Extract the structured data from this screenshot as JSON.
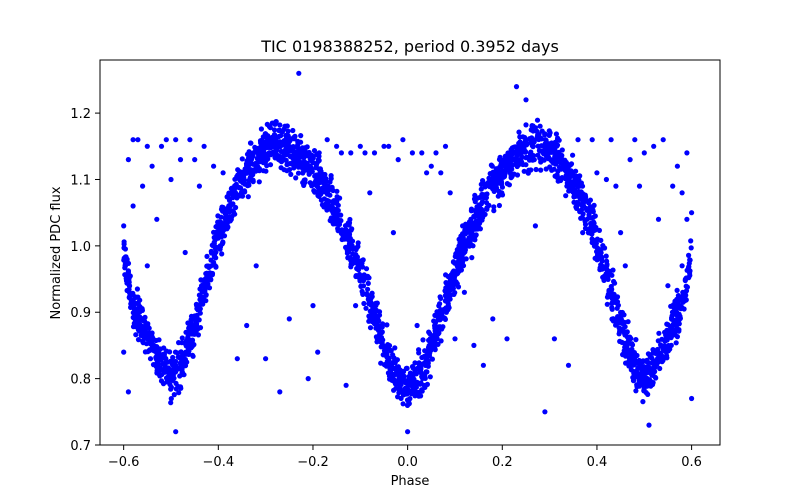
{
  "chart_data": {
    "type": "scatter",
    "title": "TIC 0198388252, period 0.3952 days",
    "xlabel": "Phase",
    "ylabel": "Normalized PDC flux",
    "xlim": [
      -0.65,
      0.66
    ],
    "ylim": [
      0.7,
      1.28
    ],
    "xticks": [
      -0.6,
      -0.4,
      -0.2,
      0.0,
      0.2,
      0.4,
      0.6
    ],
    "xtick_labels": [
      "−0.6",
      "−0.4",
      "−0.2",
      "0.0",
      "0.2",
      "0.4",
      "0.6"
    ],
    "yticks": [
      0.7,
      0.8,
      0.9,
      1.0,
      1.1,
      1.2
    ],
    "ytick_labels": [
      "0.7",
      "0.8",
      "0.9",
      "1.0",
      "1.1",
      "1.2"
    ],
    "grid": false,
    "color": "#0000ff",
    "series": [
      {
        "envelope": {
          "phase": [
            -0.6,
            -0.58,
            -0.55,
            -0.52,
            -0.5,
            -0.48,
            -0.45,
            -0.42,
            -0.4,
            -0.37,
            -0.34,
            -0.31,
            -0.28,
            -0.26,
            -0.24,
            -0.21,
            -0.18,
            -0.15,
            -0.12,
            -0.09,
            -0.06,
            -0.03,
            0.0,
            0.03,
            0.06,
            0.09,
            0.12,
            0.15,
            0.18,
            0.21,
            0.24,
            0.26,
            0.28,
            0.31,
            0.34,
            0.37,
            0.4,
            0.42,
            0.45,
            0.48,
            0.5,
            0.52,
            0.55,
            0.58,
            0.6
          ],
          "flux_center": [
            0.99,
            0.91,
            0.86,
            0.82,
            0.8,
            0.82,
            0.88,
            0.96,
            1.01,
            1.07,
            1.11,
            1.14,
            1.15,
            1.15,
            1.14,
            1.12,
            1.09,
            1.05,
            1.0,
            0.94,
            0.87,
            0.81,
            0.78,
            0.81,
            0.87,
            0.94,
            1.0,
            1.05,
            1.09,
            1.12,
            1.14,
            1.15,
            1.15,
            1.14,
            1.11,
            1.07,
            1.01,
            0.96,
            0.88,
            0.82,
            0.8,
            0.82,
            0.86,
            0.91,
            0.99
          ],
          "band_halfwidth": [
            0.04,
            0.05,
            0.05,
            0.05,
            0.05,
            0.05,
            0.05,
            0.05,
            0.05,
            0.05,
            0.05,
            0.05,
            0.05,
            0.05,
            0.05,
            0.05,
            0.05,
            0.05,
            0.05,
            0.05,
            0.05,
            0.05,
            0.04,
            0.05,
            0.05,
            0.05,
            0.05,
            0.05,
            0.05,
            0.05,
            0.05,
            0.05,
            0.05,
            0.05,
            0.05,
            0.05,
            0.05,
            0.05,
            0.05,
            0.05,
            0.05,
            0.05,
            0.05,
            0.05,
            0.04
          ]
        },
        "points": [
          [
            -0.6,
            1.03
          ],
          [
            -0.6,
            0.84
          ],
          [
            -0.59,
            1.13
          ],
          [
            -0.59,
            0.78
          ],
          [
            -0.58,
            1.16
          ],
          [
            -0.58,
            1.06
          ],
          [
            -0.57,
            1.16
          ],
          [
            -0.56,
            1.09
          ],
          [
            -0.56,
            0.89
          ],
          [
            -0.55,
            1.15
          ],
          [
            -0.55,
            0.97
          ],
          [
            -0.54,
            1.12
          ],
          [
            -0.53,
            1.04
          ],
          [
            -0.52,
            1.15
          ],
          [
            -0.51,
            1.16
          ],
          [
            -0.5,
            1.1
          ],
          [
            -0.49,
            1.16
          ],
          [
            -0.49,
            0.72
          ],
          [
            -0.48,
            1.13
          ],
          [
            -0.47,
            0.99
          ],
          [
            -0.46,
            1.16
          ],
          [
            -0.45,
            1.13
          ],
          [
            -0.44,
            1.09
          ],
          [
            -0.43,
            1.15
          ],
          [
            -0.41,
            1.12
          ],
          [
            -0.39,
            1.11
          ],
          [
            -0.36,
            0.83
          ],
          [
            -0.34,
            0.88
          ],
          [
            -0.32,
            0.97
          ],
          [
            -0.3,
            0.83
          ],
          [
            -0.27,
            0.78
          ],
          [
            -0.25,
            0.89
          ],
          [
            -0.23,
            1.26
          ],
          [
            -0.21,
            0.8
          ],
          [
            -0.2,
            0.91
          ],
          [
            -0.19,
            0.84
          ],
          [
            -0.17,
            1.16
          ],
          [
            -0.15,
            1.15
          ],
          [
            -0.14,
            1.14
          ],
          [
            -0.13,
            0.79
          ],
          [
            -0.12,
            1.14
          ],
          [
            -0.11,
            0.91
          ],
          [
            -0.1,
            1.15
          ],
          [
            -0.09,
            1.14
          ],
          [
            -0.08,
            1.08
          ],
          [
            -0.07,
            1.14
          ],
          [
            -0.05,
            1.15
          ],
          [
            -0.04,
            1.15
          ],
          [
            -0.03,
            1.02
          ],
          [
            -0.02,
            1.13
          ],
          [
            -0.01,
            1.16
          ],
          [
            0.0,
            0.72
          ],
          [
            0.01,
            1.14
          ],
          [
            0.02,
            0.88
          ],
          [
            0.03,
            1.14
          ],
          [
            0.04,
            1.11
          ],
          [
            0.05,
            1.12
          ],
          [
            0.06,
            1.14
          ],
          [
            0.07,
            1.11
          ],
          [
            0.08,
            1.15
          ],
          [
            0.09,
            1.08
          ],
          [
            0.1,
            0.86
          ],
          [
            0.12,
            0.93
          ],
          [
            0.14,
            0.85
          ],
          [
            0.16,
            0.82
          ],
          [
            0.18,
            0.89
          ],
          [
            0.21,
            0.86
          ],
          [
            0.23,
            1.24
          ],
          [
            0.25,
            1.22
          ],
          [
            0.27,
            1.03
          ],
          [
            0.29,
            0.75
          ],
          [
            0.31,
            0.86
          ],
          [
            0.34,
            0.82
          ],
          [
            0.36,
            1.16
          ],
          [
            0.37,
            1.02
          ],
          [
            0.39,
            1.16
          ],
          [
            0.4,
            1.11
          ],
          [
            0.41,
            0.98
          ],
          [
            0.42,
            1.1
          ],
          [
            0.43,
            1.16
          ],
          [
            0.44,
            1.09
          ],
          [
            0.45,
            1.02
          ],
          [
            0.46,
            0.97
          ],
          [
            0.47,
            1.13
          ],
          [
            0.48,
            1.16
          ],
          [
            0.49,
            1.09
          ],
          [
            0.5,
            1.14
          ],
          [
            0.51,
            0.73
          ],
          [
            0.52,
            1.15
          ],
          [
            0.53,
            1.04
          ],
          [
            0.54,
            1.16
          ],
          [
            0.55,
            0.94
          ],
          [
            0.56,
            1.09
          ],
          [
            0.57,
            1.12
          ],
          [
            0.58,
            1.08
          ],
          [
            0.58,
            0.97
          ],
          [
            0.59,
            1.14
          ],
          [
            0.59,
            1.04
          ],
          [
            0.6,
            1.05
          ],
          [
            0.6,
            0.77
          ]
        ]
      }
    ]
  }
}
